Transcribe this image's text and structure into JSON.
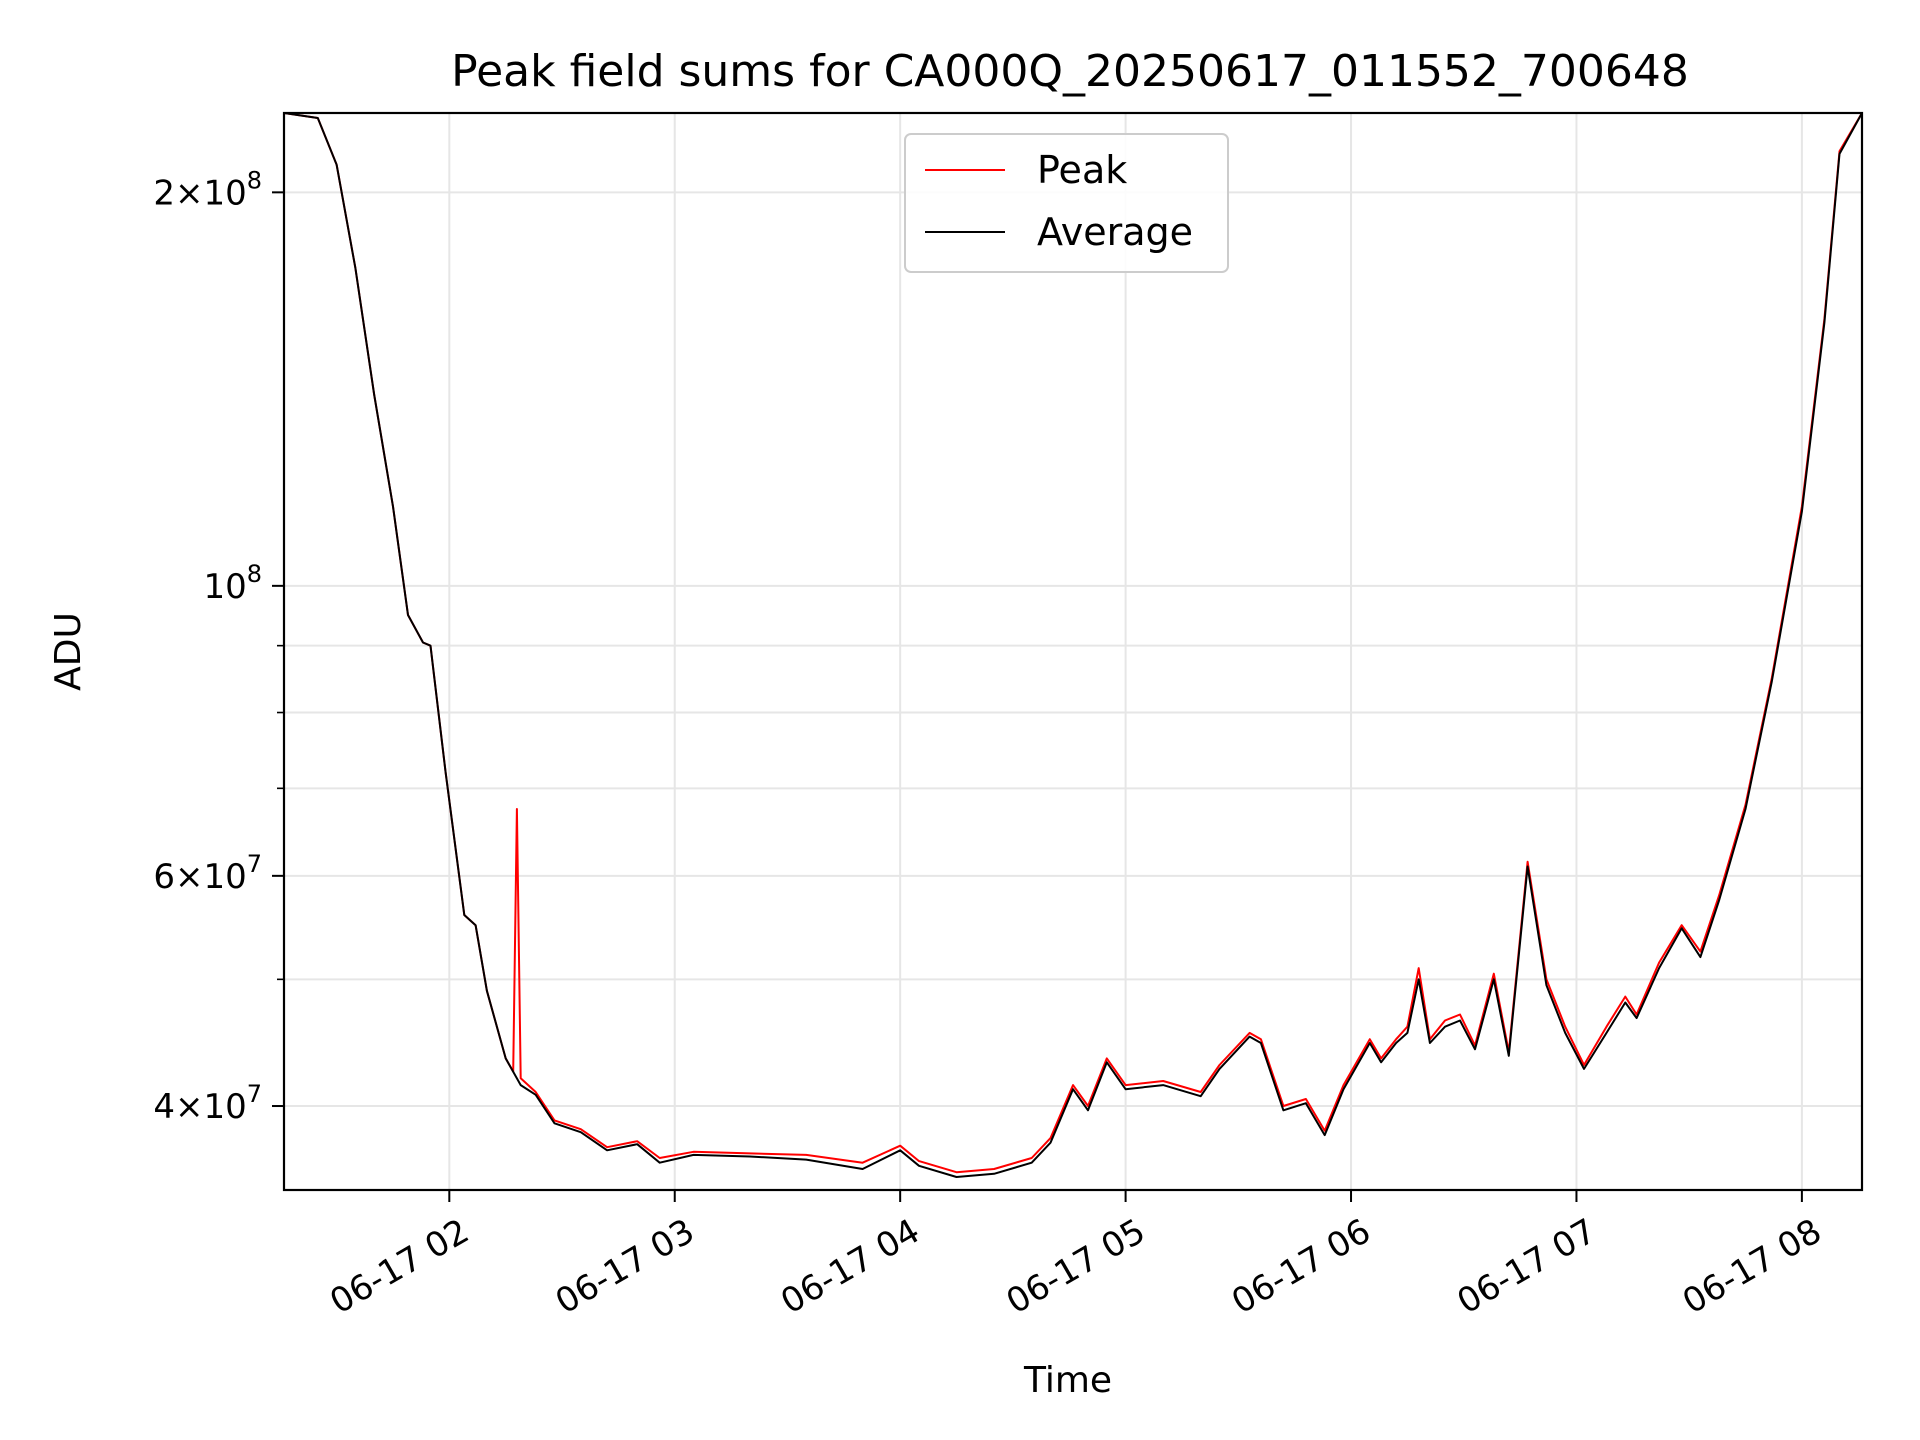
{
  "chart_data": {
    "type": "line",
    "title": "Peak field sums for CA000Q_20250617_011552_700648",
    "xlabel": "Time",
    "ylabel": "ADU",
    "yscale": "log",
    "xlim": [
      "2025-06-17 01:16",
      "2025-06-17 08:16"
    ],
    "ylim": [
      34500000,
      230000000
    ],
    "grid": true,
    "legend_position": "top-center",
    "x_ticks": [
      {
        "t": "2025-06-17 02:00",
        "label": "06-17 02"
      },
      {
        "t": "2025-06-17 03:00",
        "label": "06-17 03"
      },
      {
        "t": "2025-06-17 04:00",
        "label": "06-17 04"
      },
      {
        "t": "2025-06-17 05:00",
        "label": "06-17 05"
      },
      {
        "t": "2025-06-17 06:00",
        "label": "06-17 06"
      },
      {
        "t": "2025-06-17 07:00",
        "label": "06-17 07"
      },
      {
        "t": "2025-06-17 08:00",
        "label": "06-17 08"
      }
    ],
    "y_ticks_major": [
      {
        "value": 40000000,
        "mantissa": "4",
        "exp": "7"
      },
      {
        "value": 60000000,
        "mantissa": "6",
        "exp": "7"
      },
      {
        "value": 100000000,
        "mantissa": "",
        "exp": "8"
      },
      {
        "value": 200000000,
        "mantissa": "2",
        "exp": "8"
      }
    ],
    "y_ticks_minor": [
      50000000,
      70000000,
      80000000,
      90000000
    ],
    "series": [
      {
        "name": "Peak",
        "color": "#ff0000",
        "points": [
          [
            "2025-06-17 01:16",
            230000000
          ],
          [
            "2025-06-17 01:25",
            228000000
          ],
          [
            "2025-06-17 01:30",
            210000000
          ],
          [
            "2025-06-17 01:35",
            175000000
          ],
          [
            "2025-06-17 01:40",
            140000000
          ],
          [
            "2025-06-17 01:45",
            115000000
          ],
          [
            "2025-06-17 01:49",
            95000000
          ],
          [
            "2025-06-17 01:53",
            90500000
          ],
          [
            "2025-06-17 01:55",
            90000000
          ],
          [
            "2025-06-17 01:59",
            72000000
          ],
          [
            "2025-06-17 02:04",
            56000000
          ],
          [
            "2025-06-17 02:07",
            55000000
          ],
          [
            "2025-06-17 02:10",
            49000000
          ],
          [
            "2025-06-17 02:15",
            43500000
          ],
          [
            "2025-06-17 02:17",
            42500000
          ],
          [
            "2025-06-17 02:18",
            67500000
          ],
          [
            "2025-06-17 02:19",
            42000000
          ],
          [
            "2025-06-17 02:23",
            41000000
          ],
          [
            "2025-06-17 02:28",
            39000000
          ],
          [
            "2025-06-17 02:35",
            38400000
          ],
          [
            "2025-06-17 02:42",
            37200000
          ],
          [
            "2025-06-17 02:50",
            37600000
          ],
          [
            "2025-06-17 02:56",
            36500000
          ],
          [
            "2025-06-17 03:05",
            36900000
          ],
          [
            "2025-06-17 03:20",
            36800000
          ],
          [
            "2025-06-17 03:35",
            36700000
          ],
          [
            "2025-06-17 03:50",
            36200000
          ],
          [
            "2025-06-17 04:00",
            37300000
          ],
          [
            "2025-06-17 04:05",
            36300000
          ],
          [
            "2025-06-17 04:15",
            35600000
          ],
          [
            "2025-06-17 04:25",
            35800000
          ],
          [
            "2025-06-17 04:35",
            36500000
          ],
          [
            "2025-06-17 04:40",
            37800000
          ],
          [
            "2025-06-17 04:46",
            41500000
          ],
          [
            "2025-06-17 04:50",
            40000000
          ],
          [
            "2025-06-17 04:55",
            43500000
          ],
          [
            "2025-06-17 05:00",
            41500000
          ],
          [
            "2025-06-17 05:10",
            41800000
          ],
          [
            "2025-06-17 05:20",
            41000000
          ],
          [
            "2025-06-17 05:25",
            43000000
          ],
          [
            "2025-06-17 05:33",
            45500000
          ],
          [
            "2025-06-17 05:36",
            45000000
          ],
          [
            "2025-06-17 05:42",
            40000000
          ],
          [
            "2025-06-17 05:48",
            40500000
          ],
          [
            "2025-06-17 05:53",
            38300000
          ],
          [
            "2025-06-17 05:58",
            41500000
          ],
          [
            "2025-06-17 06:05",
            45000000
          ],
          [
            "2025-06-17 06:08",
            43500000
          ],
          [
            "2025-06-17 06:12",
            45000000
          ],
          [
            "2025-06-17 06:15",
            46000000
          ],
          [
            "2025-06-17 06:18",
            51000000
          ],
          [
            "2025-06-17 06:21",
            45000000
          ],
          [
            "2025-06-17 06:25",
            46500000
          ],
          [
            "2025-06-17 06:29",
            47000000
          ],
          [
            "2025-06-17 06:33",
            44500000
          ],
          [
            "2025-06-17 06:38",
            50500000
          ],
          [
            "2025-06-17 06:42",
            44000000
          ],
          [
            "2025-06-17 06:47",
            61500000
          ],
          [
            "2025-06-17 06:52",
            50000000
          ],
          [
            "2025-06-17 06:57",
            46000000
          ],
          [
            "2025-06-17 07:02",
            43000000
          ],
          [
            "2025-06-17 07:08",
            46000000
          ],
          [
            "2025-06-17 07:13",
            48500000
          ],
          [
            "2025-06-17 07:16",
            47000000
          ],
          [
            "2025-06-17 07:22",
            51500000
          ],
          [
            "2025-06-17 07:28",
            55000000
          ],
          [
            "2025-06-17 07:33",
            52500000
          ],
          [
            "2025-06-17 07:38",
            58000000
          ],
          [
            "2025-06-17 07:45",
            68000000
          ],
          [
            "2025-06-17 07:52",
            85000000
          ],
          [
            "2025-06-17 08:00",
            115000000
          ],
          [
            "2025-06-17 08:06",
            160000000
          ],
          [
            "2025-06-17 08:10",
            215000000
          ],
          [
            "2025-06-17 08:16",
            230000000
          ]
        ]
      },
      {
        "name": "Average",
        "color": "#000000",
        "points": [
          [
            "2025-06-17 01:16",
            230000000
          ],
          [
            "2025-06-17 01:25",
            228000000
          ],
          [
            "2025-06-17 01:30",
            210000000
          ],
          [
            "2025-06-17 01:35",
            175000000
          ],
          [
            "2025-06-17 01:40",
            140000000
          ],
          [
            "2025-06-17 01:45",
            115000000
          ],
          [
            "2025-06-17 01:49",
            95000000
          ],
          [
            "2025-06-17 01:53",
            90500000
          ],
          [
            "2025-06-17 01:55",
            90000000
          ],
          [
            "2025-06-17 01:59",
            72000000
          ],
          [
            "2025-06-17 02:04",
            56000000
          ],
          [
            "2025-06-17 02:07",
            55000000
          ],
          [
            "2025-06-17 02:10",
            49000000
          ],
          [
            "2025-06-17 02:15",
            43500000
          ],
          [
            "2025-06-17 02:19",
            41500000
          ],
          [
            "2025-06-17 02:23",
            40800000
          ],
          [
            "2025-06-17 02:28",
            38800000
          ],
          [
            "2025-06-17 02:35",
            38200000
          ],
          [
            "2025-06-17 02:42",
            37000000
          ],
          [
            "2025-06-17 02:50",
            37400000
          ],
          [
            "2025-06-17 02:56",
            36200000
          ],
          [
            "2025-06-17 03:05",
            36700000
          ],
          [
            "2025-06-17 03:20",
            36600000
          ],
          [
            "2025-06-17 03:35",
            36400000
          ],
          [
            "2025-06-17 03:50",
            35800000
          ],
          [
            "2025-06-17 04:00",
            37000000
          ],
          [
            "2025-06-17 04:05",
            36000000
          ],
          [
            "2025-06-17 04:15",
            35300000
          ],
          [
            "2025-06-17 04:25",
            35500000
          ],
          [
            "2025-06-17 04:35",
            36200000
          ],
          [
            "2025-06-17 04:40",
            37500000
          ],
          [
            "2025-06-17 04:46",
            41200000
          ],
          [
            "2025-06-17 04:50",
            39700000
          ],
          [
            "2025-06-17 04:55",
            43200000
          ],
          [
            "2025-06-17 05:00",
            41200000
          ],
          [
            "2025-06-17 05:10",
            41500000
          ],
          [
            "2025-06-17 05:20",
            40700000
          ],
          [
            "2025-06-17 05:25",
            42700000
          ],
          [
            "2025-06-17 05:33",
            45200000
          ],
          [
            "2025-06-17 05:36",
            44700000
          ],
          [
            "2025-06-17 05:42",
            39700000
          ],
          [
            "2025-06-17 05:48",
            40200000
          ],
          [
            "2025-06-17 05:53",
            38000000
          ],
          [
            "2025-06-17 05:58",
            41200000
          ],
          [
            "2025-06-17 06:05",
            44700000
          ],
          [
            "2025-06-17 06:08",
            43200000
          ],
          [
            "2025-06-17 06:12",
            44700000
          ],
          [
            "2025-06-17 06:15",
            45500000
          ],
          [
            "2025-06-17 06:18",
            50000000
          ],
          [
            "2025-06-17 06:21",
            44700000
          ],
          [
            "2025-06-17 06:25",
            46000000
          ],
          [
            "2025-06-17 06:29",
            46500000
          ],
          [
            "2025-06-17 06:33",
            44200000
          ],
          [
            "2025-06-17 06:38",
            50000000
          ],
          [
            "2025-06-17 06:42",
            43700000
          ],
          [
            "2025-06-17 06:47",
            61000000
          ],
          [
            "2025-06-17 06:52",
            49500000
          ],
          [
            "2025-06-17 06:57",
            45500000
          ],
          [
            "2025-06-17 07:02",
            42700000
          ],
          [
            "2025-06-17 07:08",
            45500000
          ],
          [
            "2025-06-17 07:13",
            48000000
          ],
          [
            "2025-06-17 07:16",
            46700000
          ],
          [
            "2025-06-17 07:22",
            51000000
          ],
          [
            "2025-06-17 07:28",
            54700000
          ],
          [
            "2025-06-17 07:33",
            52000000
          ],
          [
            "2025-06-17 07:38",
            57500000
          ],
          [
            "2025-06-17 07:45",
            67500000
          ],
          [
            "2025-06-17 07:52",
            84500000
          ],
          [
            "2025-06-17 08:00",
            114000000
          ],
          [
            "2025-06-17 08:06",
            159000000
          ],
          [
            "2025-06-17 08:10",
            214000000
          ],
          [
            "2025-06-17 08:16",
            230000000
          ]
        ]
      }
    ]
  }
}
